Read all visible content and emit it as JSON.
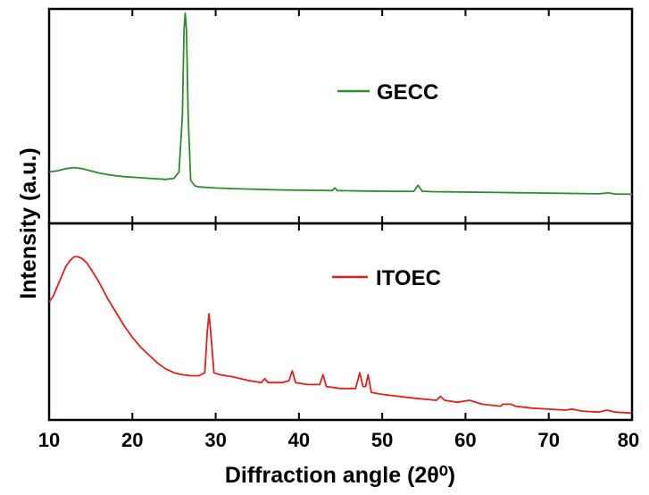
{
  "chart_data": {
    "type": "line",
    "xlabel": "Diffraction angle (2θ⁰)",
    "ylabel": "Intensity (a.u.)",
    "xlim": [
      10,
      80
    ],
    "x_ticks": [
      "10",
      "20",
      "30",
      "40",
      "50",
      "60",
      "70",
      "80"
    ],
    "grid": false,
    "legend_placement": "inside each panel, upper-middle",
    "panels": [
      {
        "position": "top",
        "series": [
          {
            "name": "GECC",
            "color": "#2e8b2e",
            "ylim": [
              0,
              1
            ],
            "points": [
              [
                10,
                0.24
              ],
              [
                11,
                0.245
              ],
              [
                12,
                0.255
              ],
              [
                13,
                0.26
              ],
              [
                14,
                0.255
              ],
              [
                15,
                0.245
              ],
              [
                16,
                0.235
              ],
              [
                17,
                0.228
              ],
              [
                18,
                0.222
              ],
              [
                19,
                0.218
              ],
              [
                20,
                0.215
              ],
              [
                21,
                0.213
              ],
              [
                22,
                0.21
              ],
              [
                23,
                0.208
              ],
              [
                24,
                0.205
              ],
              [
                25,
                0.21
              ],
              [
                25.6,
                0.24
              ],
              [
                26.0,
                0.5
              ],
              [
                26.2,
                0.9
              ],
              [
                26.35,
                0.98
              ],
              [
                26.5,
                0.9
              ],
              [
                26.7,
                0.5
              ],
              [
                27.0,
                0.2
              ],
              [
                27.5,
                0.175
              ],
              [
                28,
                0.17
              ],
              [
                30,
                0.165
              ],
              [
                32,
                0.162
              ],
              [
                34,
                0.16
              ],
              [
                36,
                0.158
              ],
              [
                38,
                0.156
              ],
              [
                40,
                0.155
              ],
              [
                42,
                0.154
              ],
              [
                44,
                0.153
              ],
              [
                44.3,
                0.165
              ],
              [
                44.6,
                0.153
              ],
              [
                46,
                0.152
              ],
              [
                48,
                0.151
              ],
              [
                50,
                0.15
              ],
              [
                52,
                0.149
              ],
              [
                53.8,
                0.15
              ],
              [
                54.3,
                0.178
              ],
              [
                54.8,
                0.15
              ],
              [
                56,
                0.148
              ],
              [
                58,
                0.147
              ],
              [
                60,
                0.146
              ],
              [
                62,
                0.145
              ],
              [
                64,
                0.144
              ],
              [
                66,
                0.143
              ],
              [
                68,
                0.142
              ],
              [
                70,
                0.141
              ],
              [
                72,
                0.14
              ],
              [
                74,
                0.139
              ],
              [
                76,
                0.138
              ],
              [
                77.2,
                0.142
              ],
              [
                78,
                0.137
              ],
              [
                80,
                0.136
              ]
            ]
          }
        ]
      },
      {
        "position": "bottom",
        "series": [
          {
            "name": "ITOEC",
            "color": "#e0201c",
            "ylim": [
              0,
              1
            ],
            "points": [
              [
                10,
                0.6
              ],
              [
                10.5,
                0.63
              ],
              [
                11,
                0.68
              ],
              [
                11.5,
                0.73
              ],
              [
                12,
                0.78
              ],
              [
                12.5,
                0.81
              ],
              [
                13,
                0.83
              ],
              [
                13.5,
                0.83
              ],
              [
                14,
                0.82
              ],
              [
                14.5,
                0.8
              ],
              [
                15,
                0.77
              ],
              [
                16,
                0.7
              ],
              [
                17,
                0.62
              ],
              [
                18,
                0.55
              ],
              [
                19,
                0.48
              ],
              [
                20,
                0.42
              ],
              [
                21,
                0.37
              ],
              [
                22,
                0.33
              ],
              [
                23,
                0.29
              ],
              [
                24,
                0.26
              ],
              [
                25,
                0.24
              ],
              [
                26,
                0.23
              ],
              [
                27,
                0.225
              ],
              [
                28,
                0.225
              ],
              [
                28.7,
                0.24
              ],
              [
                29.0,
                0.45
              ],
              [
                29.2,
                0.54
              ],
              [
                29.4,
                0.45
              ],
              [
                29.8,
                0.24
              ],
              [
                30.5,
                0.23
              ],
              [
                32,
                0.22
              ],
              [
                34,
                0.2
              ],
              [
                35.5,
                0.19
              ],
              [
                35.9,
                0.21
              ],
              [
                36.3,
                0.19
              ],
              [
                38,
                0.19
              ],
              [
                38.8,
                0.2
              ],
              [
                39.2,
                0.25
              ],
              [
                39.6,
                0.19
              ],
              [
                41,
                0.18
              ],
              [
                42.5,
                0.18
              ],
              [
                42.9,
                0.23
              ],
              [
                43.3,
                0.17
              ],
              [
                45,
                0.16
              ],
              [
                46.8,
                0.16
              ],
              [
                47.3,
                0.24
              ],
              [
                47.7,
                0.17
              ],
              [
                48.0,
                0.17
              ],
              [
                48.3,
                0.23
              ],
              [
                48.7,
                0.14
              ],
              [
                50,
                0.13
              ],
              [
                52,
                0.12
              ],
              [
                54,
                0.11
              ],
              [
                56.5,
                0.1
              ],
              [
                57,
                0.12
              ],
              [
                57.5,
                0.1
              ],
              [
                59,
                0.09
              ],
              [
                60.5,
                0.1
              ],
              [
                62,
                0.08
              ],
              [
                64.2,
                0.07
              ],
              [
                64.5,
                0.08
              ],
              [
                65.5,
                0.08
              ],
              [
                66,
                0.07
              ],
              [
                68,
                0.06
              ],
              [
                70,
                0.055
              ],
              [
                72,
                0.05
              ],
              [
                72.8,
                0.055
              ],
              [
                74,
                0.045
              ],
              [
                76,
                0.04
              ],
              [
                77,
                0.05
              ],
              [
                78,
                0.04
              ],
              [
                80,
                0.035
              ]
            ]
          }
        ]
      }
    ]
  }
}
